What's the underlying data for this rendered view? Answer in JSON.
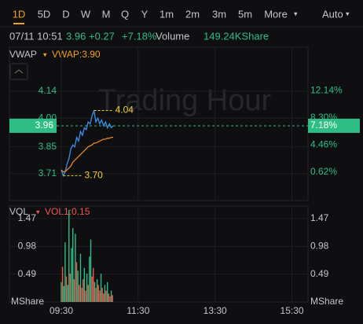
{
  "toolbar": {
    "tabs": [
      "1D",
      "5D",
      "D",
      "W",
      "M",
      "Q",
      "Y",
      "1m",
      "2m",
      "3m",
      "5m",
      "More"
    ],
    "mode": "Auto"
  },
  "quote": {
    "time": "07/11 10:51",
    "price": "3.96",
    "change": "+0.27",
    "change_pct": "+7.18%",
    "volume_label": "Volume",
    "volume": "149.24KShare"
  },
  "chart_data": [
    {
      "type": "line",
      "indicator": "VWAP",
      "indicator_value": "VWAP:3.90",
      "watermark": "Trading Hour",
      "x": [
        "09:30",
        "09:33",
        "09:36",
        "09:39",
        "09:42",
        "09:45",
        "09:48",
        "09:51",
        "09:54",
        "09:57",
        "10:00",
        "10:03",
        "10:06",
        "10:09",
        "10:12",
        "10:15",
        "10:18",
        "10:21",
        "10:24",
        "10:27",
        "10:30",
        "10:33",
        "10:36",
        "10:39",
        "10:42",
        "10:45",
        "10:48",
        "10:51"
      ],
      "series": [
        {
          "color": "#3d8fea",
          "values": [
            3.73,
            3.7,
            3.72,
            3.76,
            3.79,
            3.84,
            3.86,
            3.85,
            3.9,
            3.88,
            3.93,
            3.91,
            3.95,
            3.94,
            3.98,
            3.97,
            4.01,
            4.04,
            3.98,
            4.0,
            3.97,
            3.99,
            3.96,
            3.98,
            3.95,
            3.97,
            3.95,
            3.96
          ]
        },
        {
          "color": "#e8891c",
          "values": [
            3.73,
            3.72,
            3.72,
            3.73,
            3.74,
            3.75,
            3.77,
            3.78,
            3.79,
            3.8,
            3.81,
            3.82,
            3.83,
            3.84,
            3.85,
            3.855,
            3.86,
            3.87,
            3.87,
            3.875,
            3.88,
            3.885,
            3.89,
            3.89,
            3.895,
            3.895,
            3.9,
            3.9
          ]
        }
      ],
      "annotations": [
        {
          "x": "10:21",
          "value": 4.04
        },
        {
          "x": "09:33",
          "value": 3.7,
          "label": "3.70"
        }
      ],
      "current_price": 3.96,
      "current_pct": {
        "value": 7.18,
        "label": "7.18%"
      },
      "xlim": [
        "09:30",
        "16:00"
      ],
      "ylim": [
        3.57,
        4.37
      ],
      "yticks": [
        4.14,
        {
          "value": 4.0,
          "label": "4.00"
        },
        3.85,
        3.71
      ],
      "y2lim": [
        -3.37,
        18.28
      ],
      "y2ticks": [
        {
          "value": 12.14,
          "label": "12.14%"
        },
        {
          "value": 8.3,
          "label": "8.30%"
        },
        {
          "value": 4.46,
          "label": "4.46%"
        },
        {
          "value": 0.62,
          "label": "0.62%"
        }
      ],
      "grid": true
    },
    {
      "type": "bar",
      "indicator": "VOL",
      "indicator_value": "VOL1:0.15",
      "y_unit": "MShare",
      "x": [
        "09:30",
        "09:32",
        "09:34",
        "09:36",
        "09:38",
        "09:40",
        "09:42",
        "09:44",
        "09:46",
        "09:48",
        "09:50",
        "09:52",
        "09:54",
        "09:56",
        "09:58",
        "10:00",
        "10:02",
        "10:04",
        "10:06",
        "10:08",
        "10:10",
        "10:12",
        "10:14",
        "10:16",
        "10:18",
        "10:20",
        "10:22",
        "10:24",
        "10:26",
        "10:28",
        "10:30",
        "10:32",
        "10:34",
        "10:36",
        "10:38",
        "10:40",
        "10:42",
        "10:44",
        "10:46",
        "10:48",
        "10:50"
      ],
      "series": [
        {
          "color": "#2ebd85",
          "values": [
            0.35,
            null,
            0.28,
            1.05,
            null,
            0.3,
            1.62,
            null,
            0.95,
            1.3,
            null,
            1.2,
            null,
            0.55,
            null,
            0.85,
            null,
            null,
            0.6,
            null,
            0.5,
            null,
            0.8,
            1.1,
            null,
            null,
            0.35,
            null,
            0.4,
            null,
            null,
            0.5,
            null,
            null,
            0.3,
            null,
            0.35,
            null,
            null,
            0.2,
            null
          ]
        },
        {
          "color": "#f0584c",
          "values": [
            null,
            0.62,
            null,
            null,
            0.45,
            null,
            null,
            0.5,
            null,
            null,
            0.4,
            null,
            0.7,
            null,
            0.3,
            null,
            0.25,
            0.4,
            null,
            0.2,
            null,
            0.3,
            null,
            null,
            0.45,
            0.6,
            null,
            0.25,
            null,
            0.3,
            0.2,
            null,
            0.25,
            0.15,
            null,
            0.2,
            null,
            0.15,
            0.1,
            null,
            0.12
          ]
        }
      ],
      "xlim": [
        "09:30",
        "16:00"
      ],
      "xticks": [
        "09:30",
        "11:30",
        "13:30",
        "15:30"
      ],
      "ylim": [
        0,
        1.69
      ],
      "yticks": [
        1.47,
        0.98,
        0.49
      ],
      "grid": true
    }
  ]
}
